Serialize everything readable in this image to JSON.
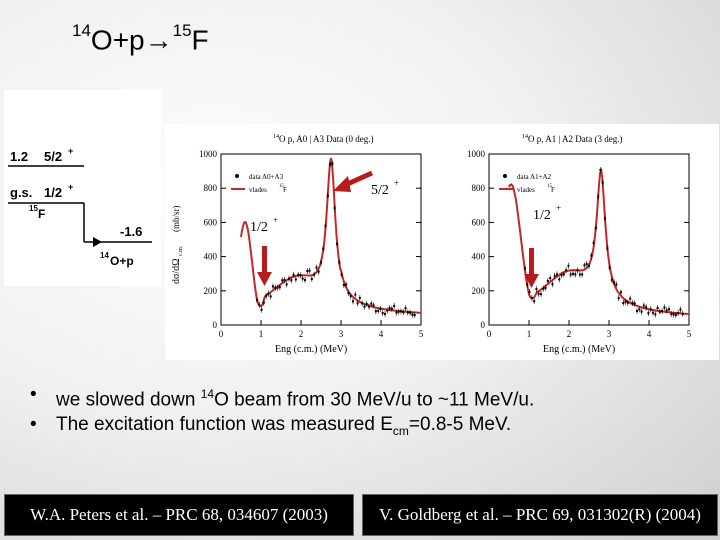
{
  "title": {
    "mass_a": "14",
    "part_a": "O+p→",
    "mass_b": "15",
    "part_b": "F"
  },
  "level_scheme": {
    "level_1": {
      "energy": "1.2",
      "spin": "5/2",
      "parity": "+"
    },
    "level_gs": {
      "energy": "g.s.",
      "spin": "1/2",
      "parity": "+"
    },
    "nucleus_a": {
      "mass": "15",
      "symbol": "F"
    },
    "threshold": {
      "energy": "-1.6",
      "mass": "14",
      "symbol": "O+p"
    }
  },
  "plots": [
    {
      "title": "O p, A0 | A3 Data (0 deg.)",
      "title_mass": "14",
      "legend": [
        "data A0+A3",
        "vlades"
      ],
      "legend_mass": "15",
      "legend_symbol": "F",
      "x_label": "Eng (c.m.) (MeV)",
      "y_label": "dσ/dΩ",
      "y_sub": "c.m.",
      "y_unit": "(mb/sr)",
      "x_ticks": [
        "0",
        "1",
        "2",
        "3",
        "4",
        "5"
      ],
      "y_ticks": [
        "0",
        "200",
        "400",
        "600",
        "800",
        "1000"
      ],
      "annotation_peak": "5/2",
      "annotation_low": "1/2"
    },
    {
      "title": "O p, A1 | A2 Data (3 deg.)",
      "title_mass": "14",
      "legend": [
        "data A1+A2",
        "vlades"
      ],
      "legend_mass": "15",
      "legend_symbol": "F",
      "x_label": "Eng (c.m.) (MeV)",
      "y_label": "",
      "x_ticks": [
        "0",
        "1",
        "2",
        "3",
        "4",
        "5"
      ],
      "y_ticks": [
        "0",
        "200",
        "400",
        "600",
        "800",
        "1000"
      ],
      "annotation_low": "1/2"
    }
  ],
  "bullets": {
    "b1_pre": "we slowed down ",
    "b1_mass": "14",
    "b1_post": "O beam from 30 MeV/u to ~11 MeV/u.",
    "b2_pre": "The excitation function was measured E",
    "b2_sub": "cm",
    "b2_post": "=0.8-5 MeV."
  },
  "references": {
    "left": "W.A. Peters et al. – PRC 68, 034607 (2003)",
    "right": "V. Goldberg et al. – PRC 69, 031302(R) (2004)"
  },
  "colors": {
    "fit": "#c62828",
    "arrow": "#b71c1c",
    "data": "#000000"
  }
}
